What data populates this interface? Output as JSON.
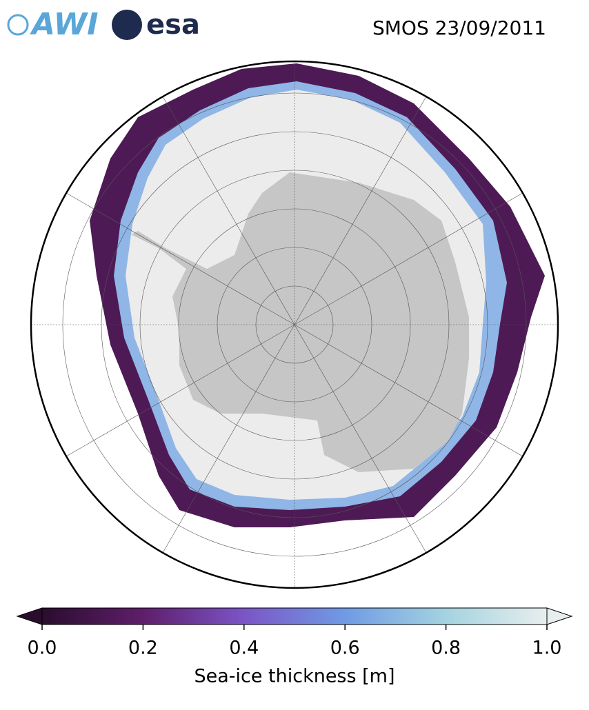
{
  "header": {
    "logos": [
      "AWI",
      "esa"
    ],
    "title": "SMOS 23/09/2011"
  },
  "colorbar": {
    "label": "Sea-ice thickness [m]",
    "range": [
      0,
      1
    ],
    "ticks": [
      {
        "value": 0,
        "label": "0.0"
      },
      0.2,
      0.4,
      0.6,
      0.8,
      {
        "value": 1,
        "label": "1.0"
      }
    ],
    "colors": [
      "#2a0d2e",
      "#5e1e6a",
      "#7b55c6",
      "#6f9be4",
      "#a4d3e0",
      "#e8eeee"
    ]
  }
}
